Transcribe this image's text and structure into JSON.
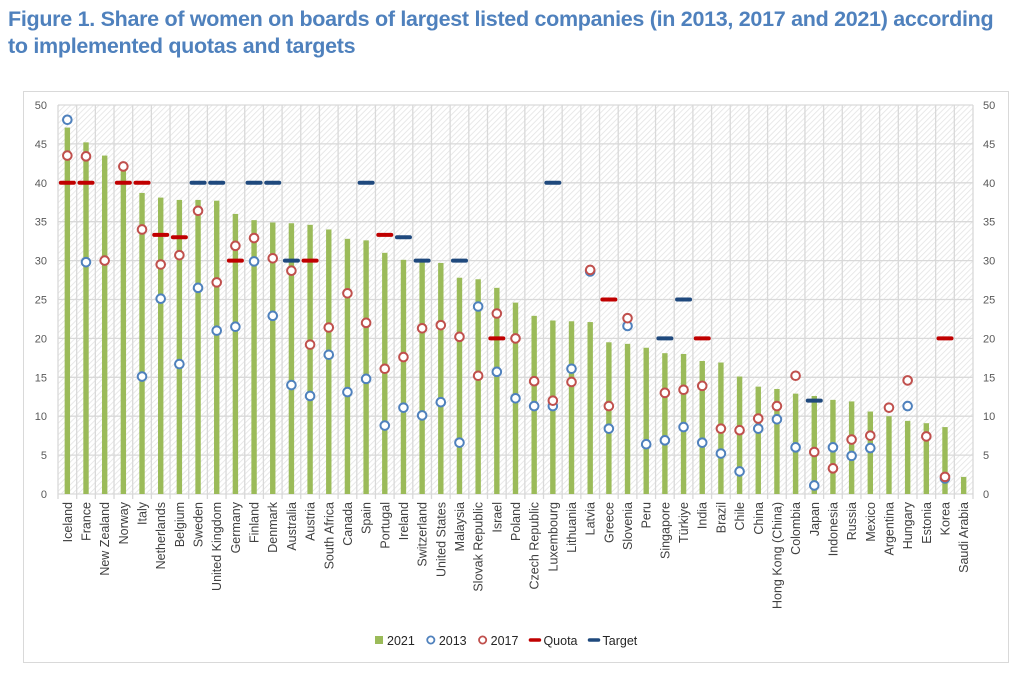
{
  "figure": {
    "title": "Figure 1. Share of women on boards of largest listed companies (in 2013, 2017 and 2021) according to implemented quotas and targets"
  },
  "chart_data": {
    "type": "bar",
    "title": "Figure 1. Share of women on boards of largest listed companies (in 2013, 2017 and 2021) according to implemented quotas and targets",
    "xlabel": "",
    "ylabel": "",
    "ylim": [
      0,
      50
    ],
    "yticks": [
      0,
      5,
      10,
      15,
      20,
      25,
      30,
      35,
      40,
      45,
      50
    ],
    "secondary_y_axis": true,
    "grid": true,
    "legend_position": "bottom",
    "colors": {
      "2021": "#9bbb59",
      "2013": "#4f81bd",
      "2017": "#c0504d",
      "Quota": "#c00000",
      "Target": "#1f497d"
    },
    "legend": [
      {
        "key": "2021",
        "label": "2021",
        "marker": "bar"
      },
      {
        "key": "2013",
        "label": "2013",
        "marker": "circle"
      },
      {
        "key": "2017",
        "label": "2017",
        "marker": "circle"
      },
      {
        "key": "Quota",
        "label": "Quota",
        "marker": "dash"
      },
      {
        "key": "Target",
        "label": "Target",
        "marker": "dash"
      }
    ],
    "categories": [
      "Iceland",
      "France",
      "New Zealand",
      "Norway",
      "Italy",
      "Netherlands",
      "Belgium",
      "Sweden",
      "United Kingdom",
      "Germany",
      "Finland",
      "Denmark",
      "Australia",
      "Austria",
      "South Africa",
      "Canada",
      "Spain",
      "Portugal",
      "Ireland",
      "Switzerland",
      "United States",
      "Malaysia",
      "Slovak Republic",
      "Israel",
      "Poland",
      "Czech Republic",
      "Luxembourg",
      "Lithuania",
      "Latvia",
      "Greece",
      "Slovenia",
      "Peru",
      "Singapore",
      "Türkiye",
      "India",
      "Brazil",
      "Chile",
      "China",
      "Hong Kong (China)",
      "Colombia",
      "Japan",
      "Indonesia",
      "Russia",
      "Mexico",
      "Argentina",
      "Hungary",
      "Estonia",
      "Korea",
      "Saudi Arabia"
    ],
    "series": [
      {
        "name": "2021",
        "type": "bar",
        "values": [
          47.1,
          45.2,
          43.5,
          42.0,
          38.7,
          38.1,
          37.8,
          37.8,
          37.7,
          36.0,
          35.2,
          34.9,
          34.8,
          34.6,
          34.0,
          32.8,
          32.6,
          31.0,
          30.1,
          29.9,
          29.7,
          27.8,
          27.6,
          26.5,
          24.6,
          22.9,
          22.3,
          22.2,
          22.1,
          19.5,
          19.3,
          18.8,
          18.1,
          18.0,
          17.1,
          16.9,
          15.1,
          13.8,
          13.5,
          12.9,
          12.6,
          12.1,
          11.9,
          10.6,
          10.0,
          9.4,
          9.1,
          8.6,
          2.2
        ]
      },
      {
        "name": "2013",
        "type": "scatter",
        "values": [
          48.1,
          29.8,
          null,
          null,
          15.1,
          25.1,
          16.7,
          26.5,
          21.0,
          21.5,
          29.9,
          22.9,
          14.0,
          12.6,
          17.9,
          13.1,
          14.8,
          8.8,
          11.1,
          10.1,
          11.8,
          6.6,
          24.1,
          15.7,
          12.3,
          11.3,
          11.3,
          16.1,
          28.6,
          8.4,
          21.6,
          6.4,
          6.9,
          8.6,
          6.6,
          5.2,
          2.9,
          8.4,
          9.6,
          6.0,
          1.1,
          6.0,
          4.9,
          5.9,
          null,
          11.3,
          null,
          2.0,
          null
        ]
      },
      {
        "name": "2017",
        "type": "scatter",
        "values": [
          43.5,
          43.4,
          30.0,
          42.1,
          34.0,
          29.5,
          30.7,
          36.4,
          27.2,
          31.9,
          32.9,
          30.3,
          28.7,
          19.2,
          21.4,
          25.8,
          22.0,
          16.1,
          17.6,
          21.3,
          21.7,
          20.2,
          15.2,
          23.2,
          20.0,
          14.5,
          12.0,
          14.4,
          28.8,
          11.3,
          22.6,
          null,
          13.0,
          13.4,
          13.9,
          8.4,
          8.2,
          9.7,
          11.3,
          15.2,
          5.4,
          3.3,
          7.0,
          7.5,
          11.1,
          14.6,
          7.4,
          2.2,
          null
        ]
      },
      {
        "name": "Quota",
        "type": "dash",
        "values": [
          40,
          40,
          null,
          40,
          40,
          33.3,
          33,
          null,
          null,
          30,
          null,
          null,
          null,
          30,
          null,
          null,
          null,
          33.3,
          null,
          null,
          null,
          null,
          null,
          20,
          null,
          null,
          null,
          null,
          null,
          25,
          null,
          null,
          null,
          null,
          20,
          null,
          null,
          null,
          null,
          null,
          null,
          null,
          null,
          null,
          null,
          null,
          null,
          20,
          null
        ]
      },
      {
        "name": "Target",
        "type": "dash",
        "values": [
          null,
          null,
          null,
          null,
          null,
          null,
          null,
          40,
          40,
          null,
          40,
          40,
          30,
          null,
          null,
          null,
          40,
          null,
          33,
          30,
          null,
          30,
          null,
          null,
          null,
          null,
          40,
          null,
          null,
          null,
          null,
          null,
          20,
          25,
          null,
          null,
          null,
          null,
          null,
          null,
          12,
          null,
          null,
          null,
          null,
          null,
          null,
          null,
          null
        ]
      }
    ]
  }
}
